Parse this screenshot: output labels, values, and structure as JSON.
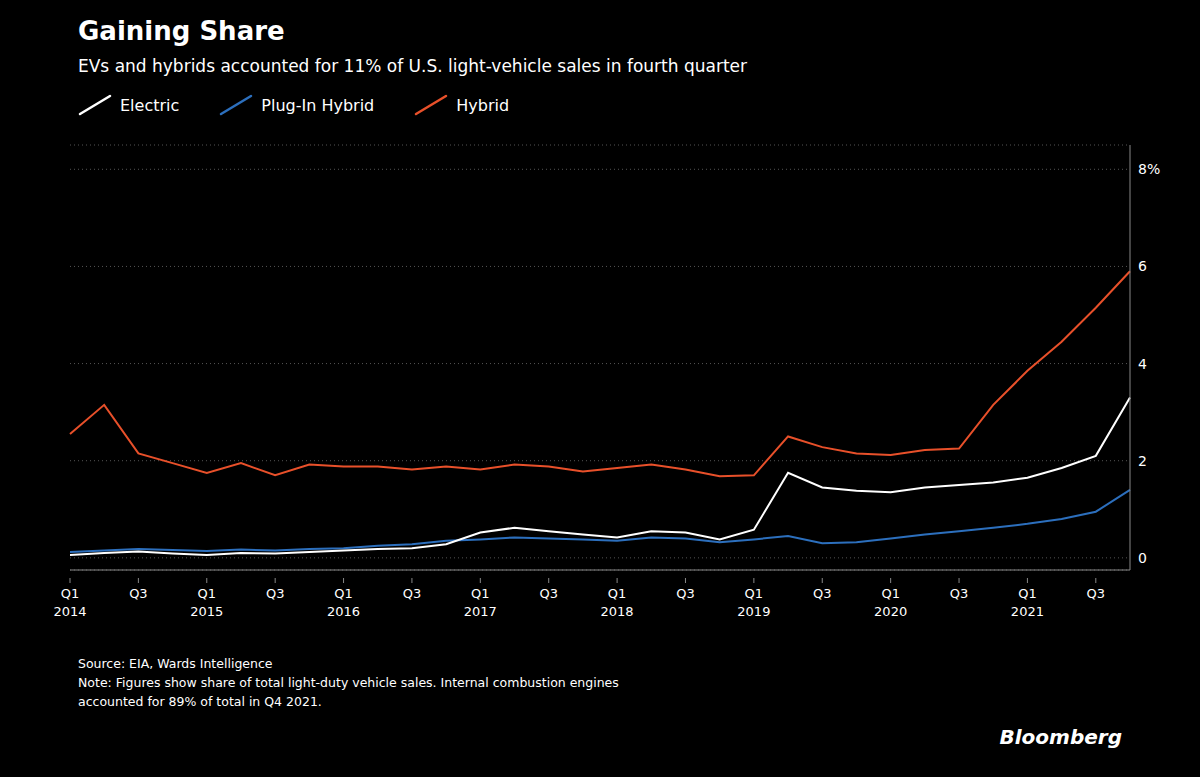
{
  "chart_data": {
    "type": "line",
    "title": "Gaining Share",
    "subtitle": "EVs and hybrids accounted for 11% of U.S. light-vehicle sales in fourth quarter",
    "annotations": [
      "Source: EIA, Wards Intelligence\nNote: Figures show share of total light-duty vehicle sales. Internal combustion engines\naccounted for 89% of total in Q4 2021.",
      "Bloomberg"
    ],
    "categories": [
      "Q1\n2014",
      null,
      "Q3",
      null,
      "Q1\n2015",
      null,
      "Q3",
      null,
      "Q1\n2016",
      null,
      "Q3",
      null,
      "Q1\n2017",
      null,
      "Q3",
      null,
      "Q1\n2018",
      null,
      "Q3",
      null,
      "Q1\n2019",
      null,
      "Q3",
      null,
      "Q1\n2020",
      null,
      "Q3",
      null,
      "Q1\n2021",
      null,
      "Q3",
      null
    ],
    "series": [
      {
        "name": "Electric",
        "color": "#ffffff",
        "values": [
          0.06,
          0.1,
          0.13,
          0.09,
          0.06,
          0.1,
          0.09,
          0.12,
          0.15,
          0.18,
          0.2,
          0.28,
          0.52,
          0.62,
          0.55,
          0.48,
          0.42,
          0.55,
          0.52,
          0.38,
          0.58,
          1.75,
          1.45,
          1.38,
          1.35,
          1.45,
          1.5,
          1.55,
          1.65,
          1.85,
          2.1,
          3.3
        ]
      },
      {
        "name": "Plug-In Hybrid",
        "color": "#2c6fbd",
        "values": [
          0.12,
          0.15,
          0.18,
          0.16,
          0.14,
          0.17,
          0.15,
          0.18,
          0.2,
          0.25,
          0.28,
          0.35,
          0.38,
          0.42,
          0.4,
          0.38,
          0.35,
          0.42,
          0.4,
          0.32,
          0.38,
          0.45,
          0.3,
          0.32,
          0.4,
          0.48,
          0.55,
          0.62,
          0.7,
          0.8,
          0.95,
          1.4
        ]
      },
      {
        "name": "Hybrid",
        "color": "#e8502a",
        "values": [
          2.55,
          3.15,
          2.15,
          1.95,
          1.75,
          1.95,
          1.7,
          1.92,
          1.88,
          1.88,
          1.82,
          1.88,
          1.82,
          1.92,
          1.88,
          1.78,
          1.85,
          1.92,
          1.82,
          1.68,
          1.7,
          2.5,
          2.28,
          2.15,
          2.12,
          2.22,
          2.25,
          3.15,
          3.85,
          4.45,
          5.15,
          5.9
        ]
      }
    ],
    "ylim": [
      -0.25,
      8.5
    ],
    "yticks": [
      0,
      2,
      4,
      6,
      {
        "value": 8,
        "label": "8%"
      }
    ],
    "grid": true,
    "legend": "top-left"
  }
}
